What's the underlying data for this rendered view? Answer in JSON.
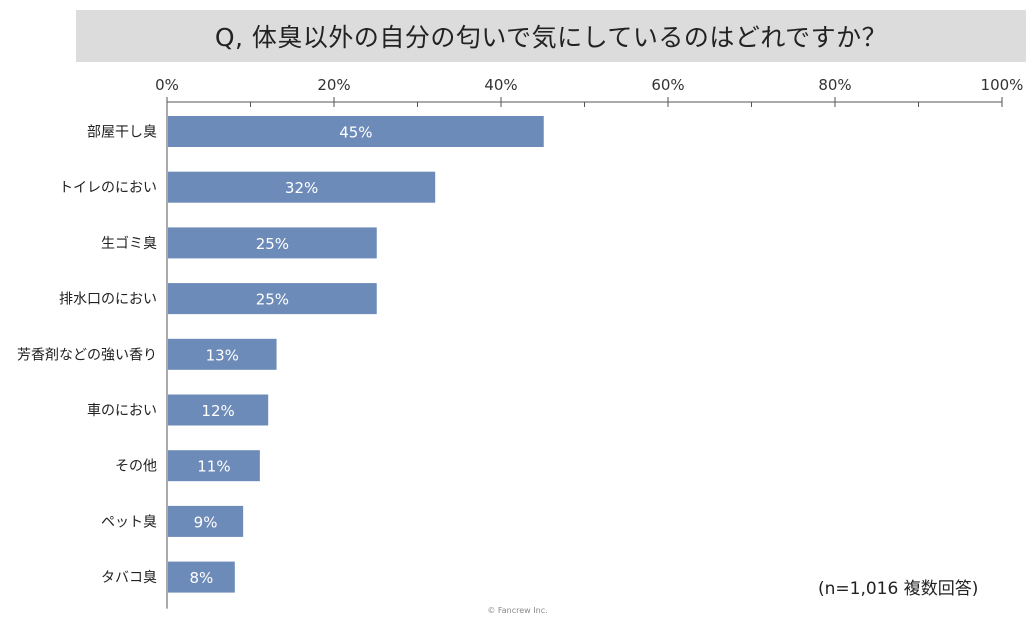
{
  "title": "Q, 体臭以外の自分の匂いで気にしているのはどれですか？",
  "note": "(n=1,016 複数回答)",
  "copyright": "© Fancrew Inc.",
  "colors": {
    "bar": "#6d8bb9",
    "axis": "#555555",
    "title_band": "#dcdcdc"
  },
  "chart_data": {
    "type": "bar",
    "orientation": "horizontal",
    "title": "Q, 体臭以外の自分の匂いで気にしているのはどれですか？",
    "categories": [
      "部屋干し臭",
      "トイレのにおい",
      "生ゴミ臭",
      "排水口のにおい",
      "芳香剤などの強い香り",
      "車のにおい",
      "その他",
      "ペット臭",
      "タバコ臭"
    ],
    "values": [
      45,
      32,
      25,
      25,
      13,
      12,
      11,
      9,
      8
    ],
    "value_labels": [
      "45%",
      "32%",
      "25%",
      "25%",
      "13%",
      "12%",
      "11%",
      "9%",
      "8%"
    ],
    "xlim": [
      0,
      100
    ],
    "ticks": [
      0,
      20,
      40,
      60,
      80,
      100
    ],
    "tick_labels": [
      "0%",
      "20%",
      "40%",
      "60%",
      "80%",
      "100%"
    ],
    "axis_position": "top",
    "grid": false,
    "legend": "none"
  }
}
